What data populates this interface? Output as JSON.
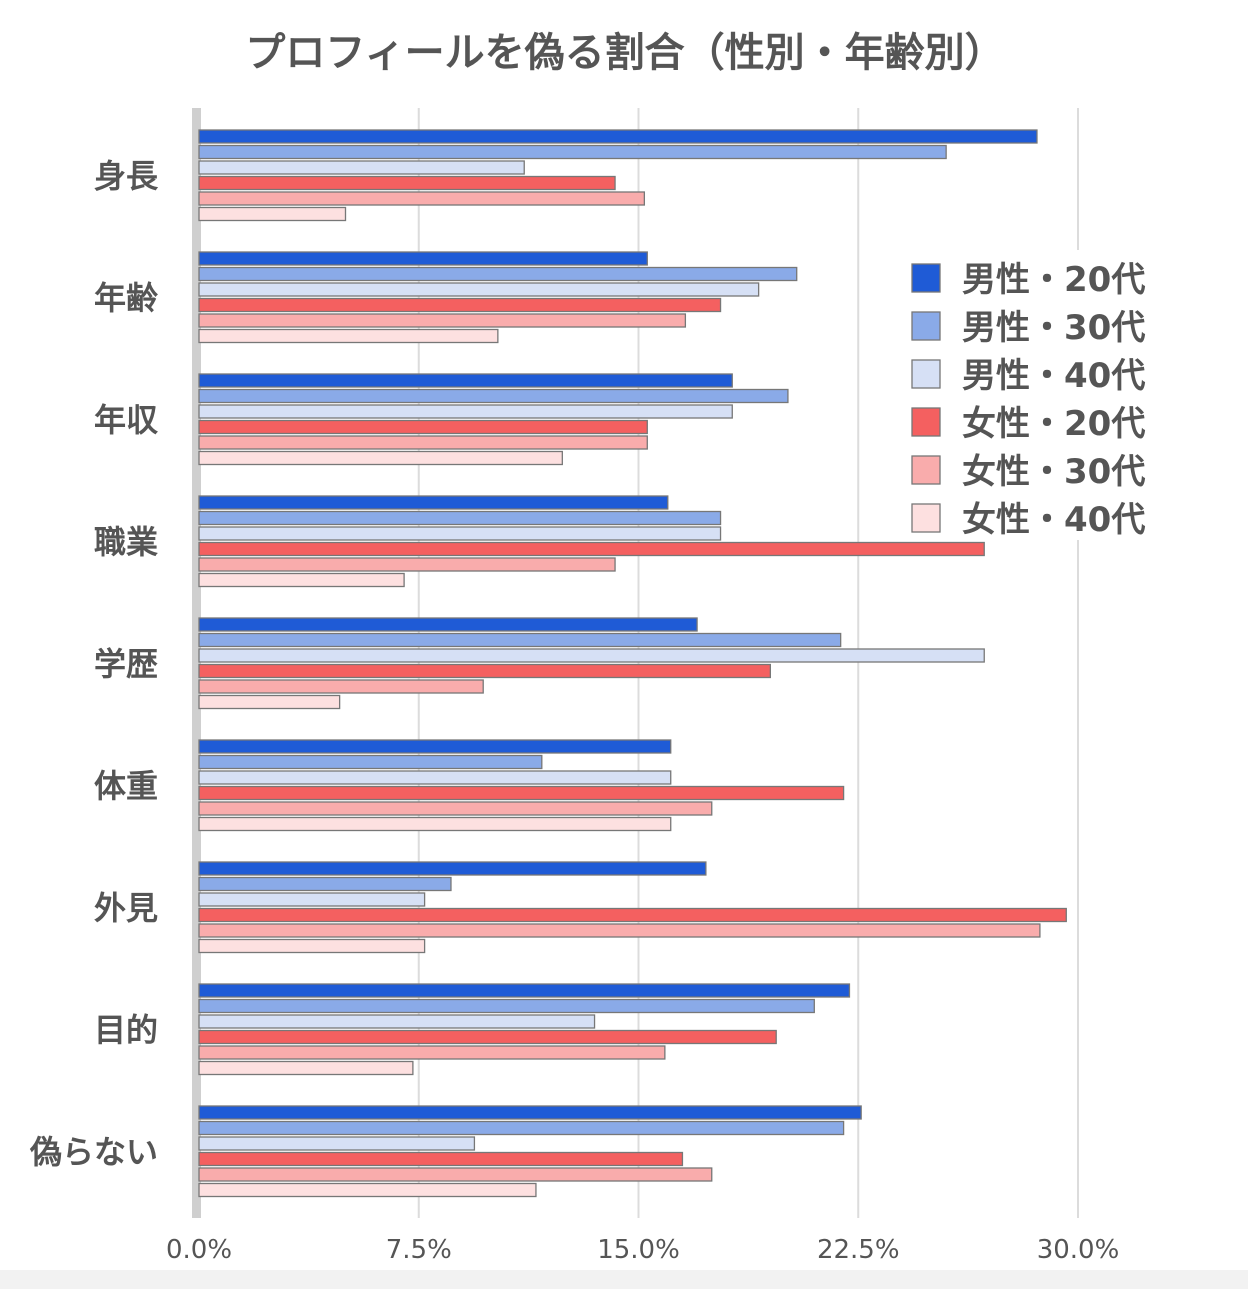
{
  "chart_data": {
    "type": "bar",
    "orientation": "horizontal",
    "title": "プロフィールを偽る割合（性別・年齢別）",
    "categories": [
      "身長",
      "年齢",
      "年収",
      "職業",
      "学歴",
      "体重",
      "外見",
      "目的",
      "偽らない"
    ],
    "series": [
      {
        "name": "男性・20代",
        "color": "#1f5bd6",
        "values": [
          28.6,
          15.3,
          18.2,
          16.0,
          17.0,
          16.1,
          17.3,
          22.2,
          22.6
        ]
      },
      {
        "name": "男性・30代",
        "color": "#8aaae8",
        "values": [
          25.5,
          20.4,
          20.1,
          17.8,
          21.9,
          11.7,
          8.6,
          21.0,
          22.0
        ]
      },
      {
        "name": "男性・40代",
        "color": "#d6e0f5",
        "values": [
          11.1,
          19.1,
          18.2,
          17.8,
          26.8,
          16.1,
          7.7,
          13.5,
          9.4
        ]
      },
      {
        "name": "女性・20代",
        "color": "#f46060",
        "values": [
          14.2,
          17.8,
          15.3,
          26.8,
          19.5,
          22.0,
          29.6,
          19.7,
          16.5
        ]
      },
      {
        "name": "女性・30代",
        "color": "#f9acac",
        "values": [
          15.2,
          16.6,
          15.3,
          14.2,
          9.7,
          17.5,
          28.7,
          15.9,
          17.5
        ]
      },
      {
        "name": "女性・40代",
        "color": "#fde0e0",
        "values": [
          5.0,
          10.2,
          12.4,
          7.0,
          4.8,
          16.1,
          7.7,
          7.3,
          11.5
        ]
      }
    ],
    "xticks": [
      "0.0%",
      "7.5%",
      "15.0%",
      "22.5%",
      "30.0%"
    ],
    "xtick_values": [
      0,
      7.5,
      15,
      22.5,
      30
    ],
    "xlim": [
      0,
      30
    ],
    "grid": true,
    "legend_position": "right"
  }
}
